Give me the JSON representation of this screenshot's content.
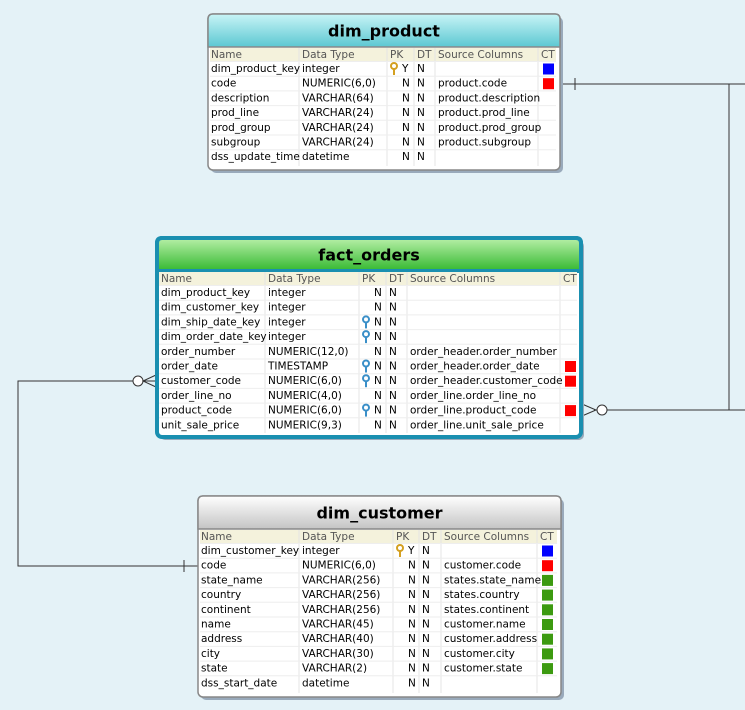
{
  "headers": [
    "Name",
    "Data Type",
    "PK",
    "DT",
    "Source Columns",
    "CT"
  ],
  "tables": [
    {
      "title": "dim_product",
      "rows": [
        {
          "name": "dim_product_key",
          "type": "integer",
          "pk": "Y",
          "dt": "N",
          "source": null,
          "key": "#d4a020",
          "ct": "#0000ff"
        },
        {
          "name": "code",
          "type": "NUMERIC(6,0)",
          "pk": "N",
          "dt": "N",
          "source": "product.code",
          "key": null,
          "ct": "#ff0000"
        },
        {
          "name": "description",
          "type": "VARCHAR(64)",
          "pk": "N",
          "dt": "N",
          "source": "product.description",
          "key": null,
          "ct": null
        },
        {
          "name": "prod_line",
          "type": "VARCHAR(24)",
          "pk": "N",
          "dt": "N",
          "source": "product.prod_line",
          "key": null,
          "ct": null
        },
        {
          "name": "prod_group",
          "type": "VARCHAR(24)",
          "pk": "N",
          "dt": "N",
          "source": "product.prod_group",
          "key": null,
          "ct": null
        },
        {
          "name": "subgroup",
          "type": "VARCHAR(24)",
          "pk": "N",
          "dt": "N",
          "source": "product.subgroup",
          "key": null,
          "ct": null
        },
        {
          "name": "dss_update_time",
          "type": "datetime",
          "pk": "N",
          "dt": "N",
          "source": null,
          "key": null,
          "ct": null
        }
      ]
    },
    {
      "title": "fact_orders",
      "rows": [
        {
          "name": "dim_product_key",
          "type": "integer",
          "pk": "N",
          "dt": "N",
          "source": null,
          "key": null,
          "ct": null
        },
        {
          "name": "dim_customer_key",
          "type": "integer",
          "pk": "N",
          "dt": "N",
          "source": null,
          "key": null,
          "ct": null
        },
        {
          "name": "dim_ship_date_key",
          "type": "integer",
          "pk": "N",
          "dt": "N",
          "source": null,
          "key": "#3a8fc8",
          "ct": null
        },
        {
          "name": "dim_order_date_key",
          "type": "integer",
          "pk": "N",
          "dt": "N",
          "source": null,
          "key": "#3a8fc8",
          "ct": null
        },
        {
          "name": "order_number",
          "type": "NUMERIC(12,0)",
          "pk": "N",
          "dt": "N",
          "source": "order_header.order_number",
          "key": null,
          "ct": null
        },
        {
          "name": "order_date",
          "type": "TIMESTAMP",
          "pk": "N",
          "dt": "N",
          "source": "order_header.order_date",
          "key": "#3a8fc8",
          "ct": "#ff0000"
        },
        {
          "name": "customer_code",
          "type": "NUMERIC(6,0)",
          "pk": "N",
          "dt": "N",
          "source": "order_header.customer_code",
          "key": "#3a8fc8",
          "ct": "#ff0000"
        },
        {
          "name": "order_line_no",
          "type": "NUMERIC(4,0)",
          "pk": "N",
          "dt": "N",
          "source": "order_line.order_line_no",
          "key": null,
          "ct": null
        },
        {
          "name": "product_code",
          "type": "NUMERIC(6,0)",
          "pk": "N",
          "dt": "N",
          "source": "order_line.product_code",
          "key": "#3a8fc8",
          "ct": "#ff0000"
        },
        {
          "name": "unit_sale_price",
          "type": "NUMERIC(9,3)",
          "pk": "N",
          "dt": "N",
          "source": "order_line.unit_sale_price",
          "key": null,
          "ct": null
        }
      ]
    },
    {
      "title": "dim_customer",
      "rows": [
        {
          "name": "dim_customer_key",
          "type": "integer",
          "pk": "Y",
          "dt": "N",
          "source": null,
          "key": "#d4a020",
          "ct": "#0000ff"
        },
        {
          "name": "code",
          "type": "NUMERIC(6,0)",
          "pk": "N",
          "dt": "N",
          "source": "customer.code",
          "key": null,
          "ct": "#ff0000"
        },
        {
          "name": "state_name",
          "type": "VARCHAR(256)",
          "pk": "N",
          "dt": "N",
          "source": "states.state_name",
          "key": null,
          "ct": "#3c9a10"
        },
        {
          "name": "country",
          "type": "VARCHAR(256)",
          "pk": "N",
          "dt": "N",
          "source": "states.country",
          "key": null,
          "ct": "#3c9a10"
        },
        {
          "name": "continent",
          "type": "VARCHAR(256)",
          "pk": "N",
          "dt": "N",
          "source": "states.continent",
          "key": null,
          "ct": "#3c9a10"
        },
        {
          "name": "name",
          "type": "VARCHAR(45)",
          "pk": "N",
          "dt": "N",
          "source": "customer.name",
          "key": null,
          "ct": "#3c9a10"
        },
        {
          "name": "address",
          "type": "VARCHAR(40)",
          "pk": "N",
          "dt": "N",
          "source": "customer.address",
          "key": null,
          "ct": "#3c9a10"
        },
        {
          "name": "city",
          "type": "VARCHAR(30)",
          "pk": "N",
          "dt": "N",
          "source": "customer.city",
          "key": null,
          "ct": "#3c9a10"
        },
        {
          "name": "state",
          "type": "VARCHAR(2)",
          "pk": "N",
          "dt": "N",
          "source": "customer.state",
          "key": null,
          "ct": "#3c9a10"
        },
        {
          "name": "dss_start_date",
          "type": "datetime",
          "pk": "N",
          "dt": "N",
          "source": null,
          "key": null,
          "ct": null
        }
      ]
    }
  ]
}
